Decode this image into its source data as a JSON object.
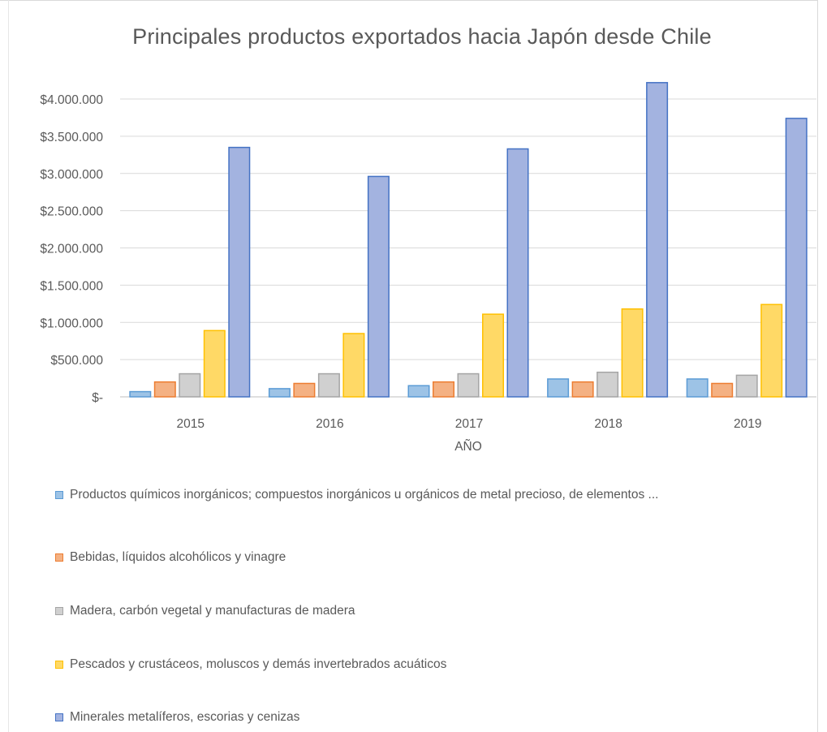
{
  "chart_data": {
    "type": "bar",
    "title": "Principales productos exportados hacia Japón desde Chile",
    "xlabel": "AÑO",
    "ylabel": "",
    "categories": [
      "2015",
      "2016",
      "2017",
      "2018",
      "2019"
    ],
    "ylim": [
      0,
      4000000
    ],
    "yticks": [
      0,
      500000,
      1000000,
      1500000,
      2000000,
      2500000,
      3000000,
      3500000,
      4000000
    ],
    "ytick_labels": [
      "$-",
      "$500.000",
      "$1.000.000",
      "$1.500.000",
      "$2.000.000",
      "$2.500.000",
      "$3.000.000",
      "$3.500.000",
      "$4.000.000"
    ],
    "grid": true,
    "legend_position": "bottom",
    "series": [
      {
        "name": "Productos químicos inorgánicos; compuestos inorgánicos u orgánicos de metal precioso, de elementos ...",
        "color": "#9dc3e6",
        "stroke": "#5b9bd5",
        "values": [
          70000,
          110000,
          150000,
          240000,
          240000
        ]
      },
      {
        "name": "Bebidas, líquidos alcohólicos y vinagre",
        "color": "#f4b183",
        "stroke": "#ed7d31",
        "values": [
          200000,
          180000,
          200000,
          200000,
          180000
        ]
      },
      {
        "name": "Madera, carbón vegetal y manufacturas de madera",
        "color": "#d0d0d0",
        "stroke": "#a5a5a5",
        "values": [
          310000,
          310000,
          310000,
          330000,
          290000
        ]
      },
      {
        "name": "Pescados y crustáceos, moluscos y demás invertebrados acuáticos",
        "color": "#ffd966",
        "stroke": "#ffc000",
        "values": [
          890000,
          850000,
          1110000,
          1180000,
          1240000
        ]
      },
      {
        "name": "Minerales metalíferos, escorias y cenizas",
        "color": "#a3b3e0",
        "stroke": "#4472c4",
        "values": [
          3350000,
          2960000,
          3330000,
          4220000,
          3740000
        ]
      }
    ]
  }
}
